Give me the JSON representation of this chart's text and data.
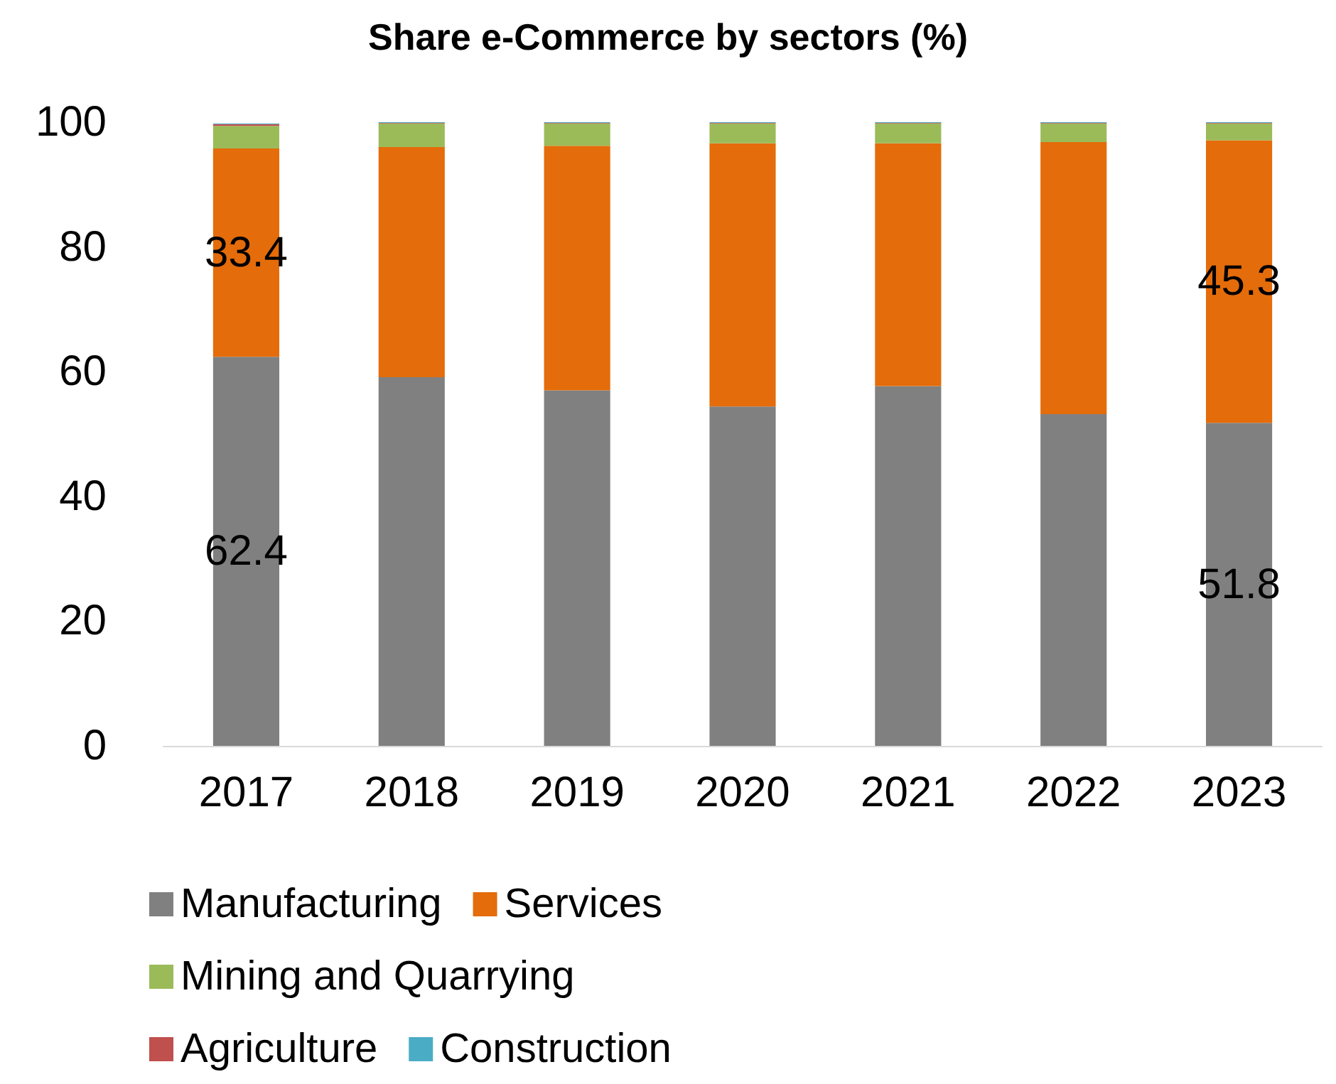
{
  "chart_data": {
    "type": "bar",
    "title": "Share e-Commerce by sectors (%)",
    "stacked": true,
    "categories": [
      "2017",
      "2018",
      "2019",
      "2020",
      "2021",
      "2022",
      "2023"
    ],
    "series": [
      {
        "name": "Manufacturing",
        "color": "#808080",
        "values": [
          62.4,
          59.1,
          57.0,
          54.4,
          57.7,
          53.2,
          51.8
        ],
        "value_labels": [
          "62.4",
          null,
          null,
          null,
          null,
          null,
          "51.8"
        ]
      },
      {
        "name": "Services",
        "color": "#e46c0a",
        "values": [
          33.4,
          36.9,
          39.2,
          42.2,
          38.9,
          43.6,
          45.3
        ],
        "value_labels": [
          "33.4",
          null,
          null,
          null,
          null,
          null,
          "45.3"
        ]
      },
      {
        "name": "Mining and Quarrying",
        "color": "#9bbb59",
        "values": [
          3.6,
          3.8,
          3.6,
          3.2,
          3.2,
          3.0,
          2.7
        ]
      },
      {
        "name": "Agriculture",
        "color": "#c0504d",
        "values": [
          0.3,
          0.1,
          0.1,
          0.1,
          0.1,
          0.1,
          0.1
        ]
      },
      {
        "name": "Construction",
        "color": "#4bacc6",
        "values": [
          0.1,
          0.1,
          0.1,
          0.1,
          0.1,
          0.1,
          0.1
        ]
      }
    ],
    "ylim": [
      0,
      100
    ],
    "yticks": [
      0,
      20,
      40,
      60,
      80,
      100
    ],
    "grid": false,
    "legend": "bottom"
  }
}
